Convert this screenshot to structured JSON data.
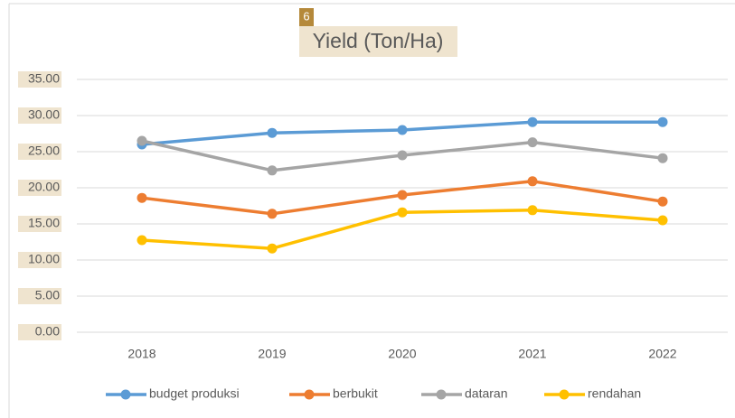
{
  "chart_data": {
    "type": "line",
    "title": "Yield (Ton/Ha)",
    "annotation": "6",
    "categories": [
      "2018",
      "2019",
      "2020",
      "2021",
      "2022"
    ],
    "series": [
      {
        "name": "budget produksi",
        "color": "#5b9bd5",
        "values": [
          26.0,
          27.6,
          28.0,
          29.1,
          29.1
        ]
      },
      {
        "name": "berbukit",
        "color": "#ed7d31",
        "values": [
          18.6,
          16.4,
          19.0,
          20.9,
          18.1
        ]
      },
      {
        "name": "dataran",
        "color": "#a5a5a5",
        "values": [
          26.5,
          22.4,
          24.5,
          26.3,
          24.1
        ]
      },
      {
        "name": "rendahan",
        "color": "#ffc000",
        "values": [
          12.75,
          11.6,
          16.6,
          16.9,
          15.5
        ]
      }
    ],
    "ylim": [
      0,
      35
    ],
    "yticks": [
      {
        "value": 0,
        "label": "0.00"
      },
      {
        "value": 5,
        "label": "5.00"
      },
      {
        "value": 10,
        "label": "10.00"
      },
      {
        "value": 15,
        "label": "15.00"
      },
      {
        "value": 20,
        "label": "20.00"
      },
      {
        "value": 25,
        "label": "25.00"
      },
      {
        "value": 30,
        "label": "30.00"
      },
      {
        "value": 35,
        "label": "35.00"
      }
    ],
    "grid": true,
    "legend": "bottom"
  }
}
